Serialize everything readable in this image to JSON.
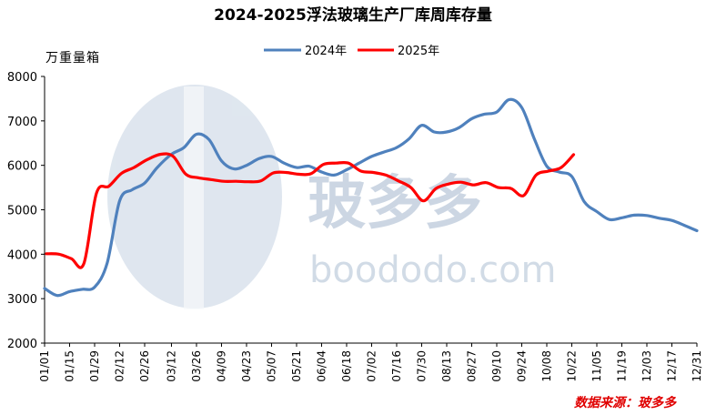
{
  "chart_data": {
    "type": "line",
    "title": "2024-2025浮法玻璃生产厂库周库存量",
    "ylabel": "万重量箱",
    "ylim": [
      2000,
      8000
    ],
    "yticks": [
      2000,
      3000,
      4000,
      5000,
      6000,
      7000,
      8000
    ],
    "xticks": [
      "01/01",
      "01/15",
      "01/29",
      "02/12",
      "02/26",
      "03/12",
      "03/26",
      "04/09",
      "04/23",
      "05/07",
      "05/21",
      "06/04",
      "06/18",
      "07/02",
      "07/16",
      "07/30",
      "08/13",
      "08/27",
      "09/10",
      "09/24",
      "10/08",
      "10/22",
      "11/05",
      "11/19",
      "12/03",
      "12/17",
      "12/31"
    ],
    "legend_position": "top-center",
    "grid": false,
    "series": [
      {
        "name": "2024年",
        "color": "#4f81bd",
        "x": [
          "01/01",
          "01/08",
          "01/15",
          "01/22",
          "01/29",
          "02/05",
          "02/12",
          "02/19",
          "02/26",
          "03/04",
          "03/12",
          "03/19",
          "03/26",
          "04/02",
          "04/09",
          "04/16",
          "04/23",
          "04/30",
          "05/07",
          "05/14",
          "05/21",
          "05/28",
          "06/04",
          "06/11",
          "06/18",
          "06/25",
          "07/02",
          "07/09",
          "07/16",
          "07/23",
          "07/30",
          "08/06",
          "08/13",
          "08/20",
          "08/27",
          "09/03",
          "09/10",
          "09/17",
          "09/24",
          "10/01",
          "10/08",
          "10/15",
          "10/22",
          "10/29",
          "11/05",
          "11/12",
          "11/19",
          "11/26",
          "12/03",
          "12/10",
          "12/17",
          "12/24",
          "12/31"
        ],
        "values": [
          3230,
          3070,
          3160,
          3210,
          3260,
          3800,
          5200,
          5450,
          5600,
          5950,
          6250,
          6400,
          6700,
          6580,
          6100,
          5920,
          6000,
          6150,
          6200,
          6050,
          5950,
          5980,
          5850,
          5780,
          5900,
          6050,
          6200,
          6300,
          6400,
          6600,
          6900,
          6750,
          6750,
          6850,
          7050,
          7150,
          7200,
          7480,
          7300,
          6600,
          5980,
          5850,
          5750,
          5180,
          4960,
          4780,
          4820,
          4880,
          4870,
          4810,
          4760,
          4650,
          4530
        ]
      },
      {
        "name": "2025年",
        "color": "#ff0000",
        "x": [
          "01/02",
          "01/09",
          "01/16",
          "01/23",
          "01/30",
          "02/06",
          "02/13",
          "02/20",
          "02/27",
          "03/06",
          "03/13",
          "03/20",
          "03/27",
          "04/03",
          "04/10",
          "04/17",
          "04/24",
          "05/01",
          "05/08",
          "05/15",
          "05/22",
          "05/29",
          "06/05",
          "06/12",
          "06/19",
          "06/26",
          "07/03",
          "07/10",
          "07/17",
          "07/24",
          "07/31",
          "08/07",
          "08/14",
          "08/21",
          "08/28",
          "09/04",
          "09/11",
          "09/18",
          "09/25",
          "10/02",
          "10/09",
          "10/16",
          "10/23"
        ],
        "values": [
          4010,
          4000,
          3900,
          3790,
          5370,
          5530,
          5820,
          5950,
          6120,
          6250,
          6200,
          5800,
          5720,
          5680,
          5640,
          5640,
          5630,
          5650,
          5830,
          5840,
          5800,
          5810,
          6020,
          6050,
          6050,
          5870,
          5840,
          5780,
          5650,
          5500,
          5200,
          5480,
          5580,
          5620,
          5560,
          5610,
          5500,
          5480,
          5320,
          5780,
          5870,
          5950,
          6240
        ]
      }
    ]
  },
  "watermark": {
    "cn": "玻多多",
    "en": "boododo.com"
  },
  "source": "数据来源：玻多多"
}
